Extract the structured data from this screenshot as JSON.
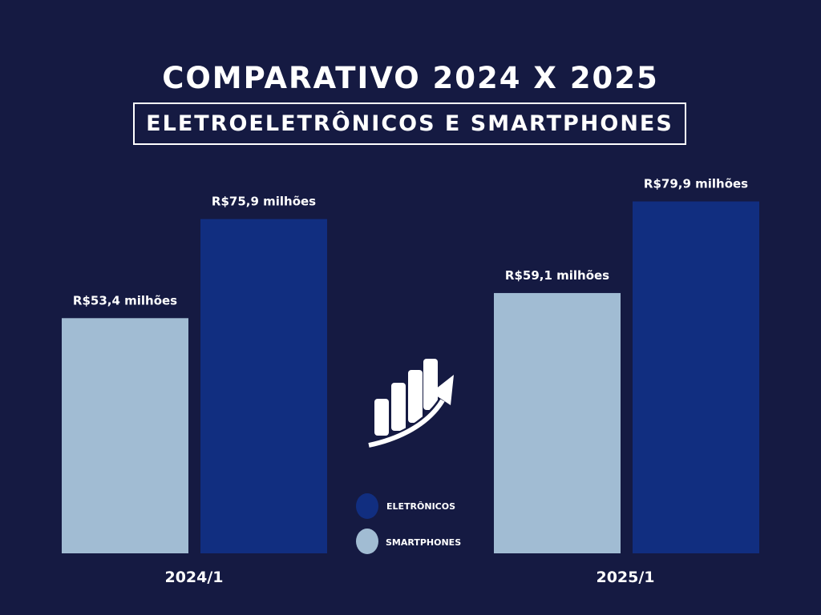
{
  "colors": {
    "background": "#151a42",
    "smartphones": "#a1bcd3",
    "eletronicos": "#112e80",
    "text": "#ffffff"
  },
  "growth_icon": "bar-chart-growth-arrow-icon",
  "chart_data": {
    "type": "bar",
    "title": "COMPARATIVO 2024 X 2025",
    "subtitle": "ELETROELETRÔNICOS E SMARTPHONES",
    "categories": [
      "2024/1",
      "2025/1"
    ],
    "series": [
      {
        "name": "SMARTPHONES",
        "values": [
          53.4,
          59.1
        ],
        "labels": [
          "R$53,4 milhões",
          "R$59,1 milhões"
        ]
      },
      {
        "name": "ELETRÔNICOS",
        "values": [
          75.9,
          79.9
        ],
        "labels": [
          "R$75,9 milhões",
          "R$79,9 milhões"
        ]
      }
    ],
    "ylim": [
      0,
      100
    ],
    "grid": false,
    "legend_position": "center"
  }
}
